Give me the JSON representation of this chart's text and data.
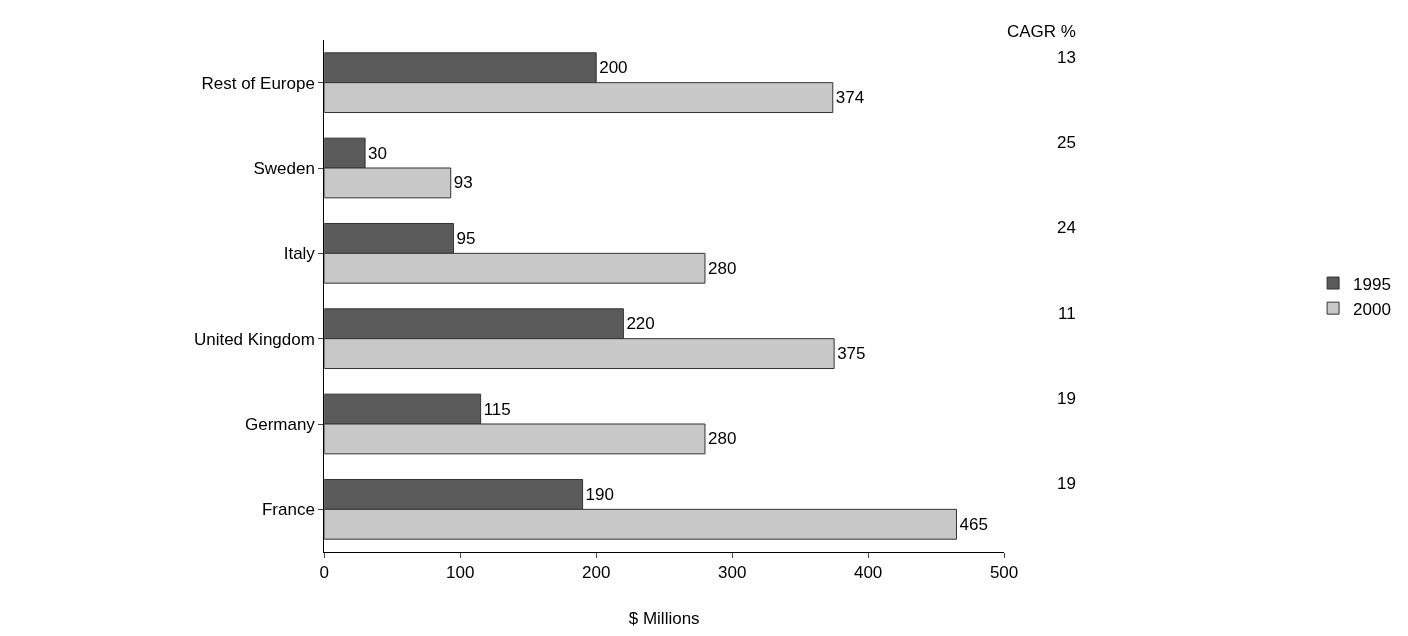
{
  "chart_data": {
    "type": "bar",
    "orientation": "horizontal",
    "xlabel": "$ Millions",
    "categories": [
      "Rest of Europe",
      "Sweden",
      "Italy",
      "United Kingdom",
      "Germany",
      "France"
    ],
    "series": [
      {
        "name": "1995",
        "color": "#5a5a5a",
        "values": [
          200,
          30,
          95,
          220,
          115,
          190
        ]
      },
      {
        "name": "2000",
        "color": "#c8c8c8",
        "values": [
          374,
          93,
          280,
          375,
          280,
          465
        ]
      }
    ],
    "xlim": [
      0,
      500
    ],
    "xticks": [
      0,
      100,
      200,
      300,
      400,
      500
    ],
    "data_labels": true,
    "legend": "right",
    "annotations": [
      "CAGR %",
      "13",
      "25",
      "24",
      "11",
      "19",
      "19"
    ]
  }
}
